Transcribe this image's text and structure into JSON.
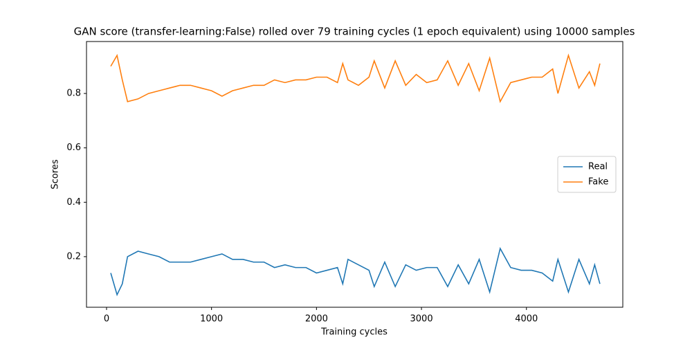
{
  "chart_data": {
    "type": "line",
    "title": "GAN score (transfer-learning:False) rolled over 79 training cycles (1 epoch equivalent) using 10000 samples",
    "x_label": "Training cycles",
    "y_label": "Scores",
    "x": [
      40,
      100,
      150,
      200,
      300,
      400,
      500,
      600,
      700,
      800,
      900,
      1000,
      1100,
      1200,
      1300,
      1400,
      1500,
      1600,
      1700,
      1800,
      1900,
      2000,
      2100,
      2200,
      2250,
      2300,
      2400,
      2500,
      2550,
      2650,
      2750,
      2850,
      2950,
      3050,
      3150,
      3250,
      3350,
      3450,
      3550,
      3650,
      3750,
      3850,
      3950,
      4050,
      4150,
      4250,
      4300,
      4400,
      4500,
      4600,
      4650,
      4700
    ],
    "series": [
      {
        "name": "Real",
        "color": "#1f77b4",
        "values": [
          0.14,
          0.06,
          0.1,
          0.2,
          0.22,
          0.21,
          0.2,
          0.18,
          0.18,
          0.18,
          0.19,
          0.2,
          0.21,
          0.19,
          0.19,
          0.18,
          0.18,
          0.16,
          0.17,
          0.16,
          0.16,
          0.14,
          0.15,
          0.16,
          0.1,
          0.19,
          0.17,
          0.15,
          0.09,
          0.18,
          0.09,
          0.17,
          0.15,
          0.16,
          0.16,
          0.09,
          0.17,
          0.1,
          0.19,
          0.07,
          0.23,
          0.16,
          0.15,
          0.15,
          0.14,
          0.11,
          0.19,
          0.07,
          0.19,
          0.1,
          0.17,
          0.1
        ]
      },
      {
        "name": "Fake",
        "color": "#ff7f0e",
        "values": [
          0.9,
          0.94,
          0.85,
          0.77,
          0.78,
          0.8,
          0.81,
          0.82,
          0.83,
          0.83,
          0.82,
          0.81,
          0.79,
          0.81,
          0.82,
          0.83,
          0.83,
          0.85,
          0.84,
          0.85,
          0.85,
          0.86,
          0.86,
          0.84,
          0.91,
          0.85,
          0.83,
          0.86,
          0.92,
          0.82,
          0.92,
          0.83,
          0.87,
          0.84,
          0.85,
          0.92,
          0.83,
          0.91,
          0.81,
          0.93,
          0.77,
          0.84,
          0.85,
          0.86,
          0.86,
          0.89,
          0.8,
          0.94,
          0.82,
          0.88,
          0.83,
          0.91
        ]
      }
    ],
    "xlim": [
      -191,
      4918
    ],
    "xticks": [
      0,
      1000,
      2000,
      3000,
      4000
    ],
    "ylim": [
      0.014,
      0.991
    ],
    "yticks": [
      0.2,
      0.4,
      0.6,
      0.8
    ],
    "grid": false,
    "legend": "right"
  }
}
